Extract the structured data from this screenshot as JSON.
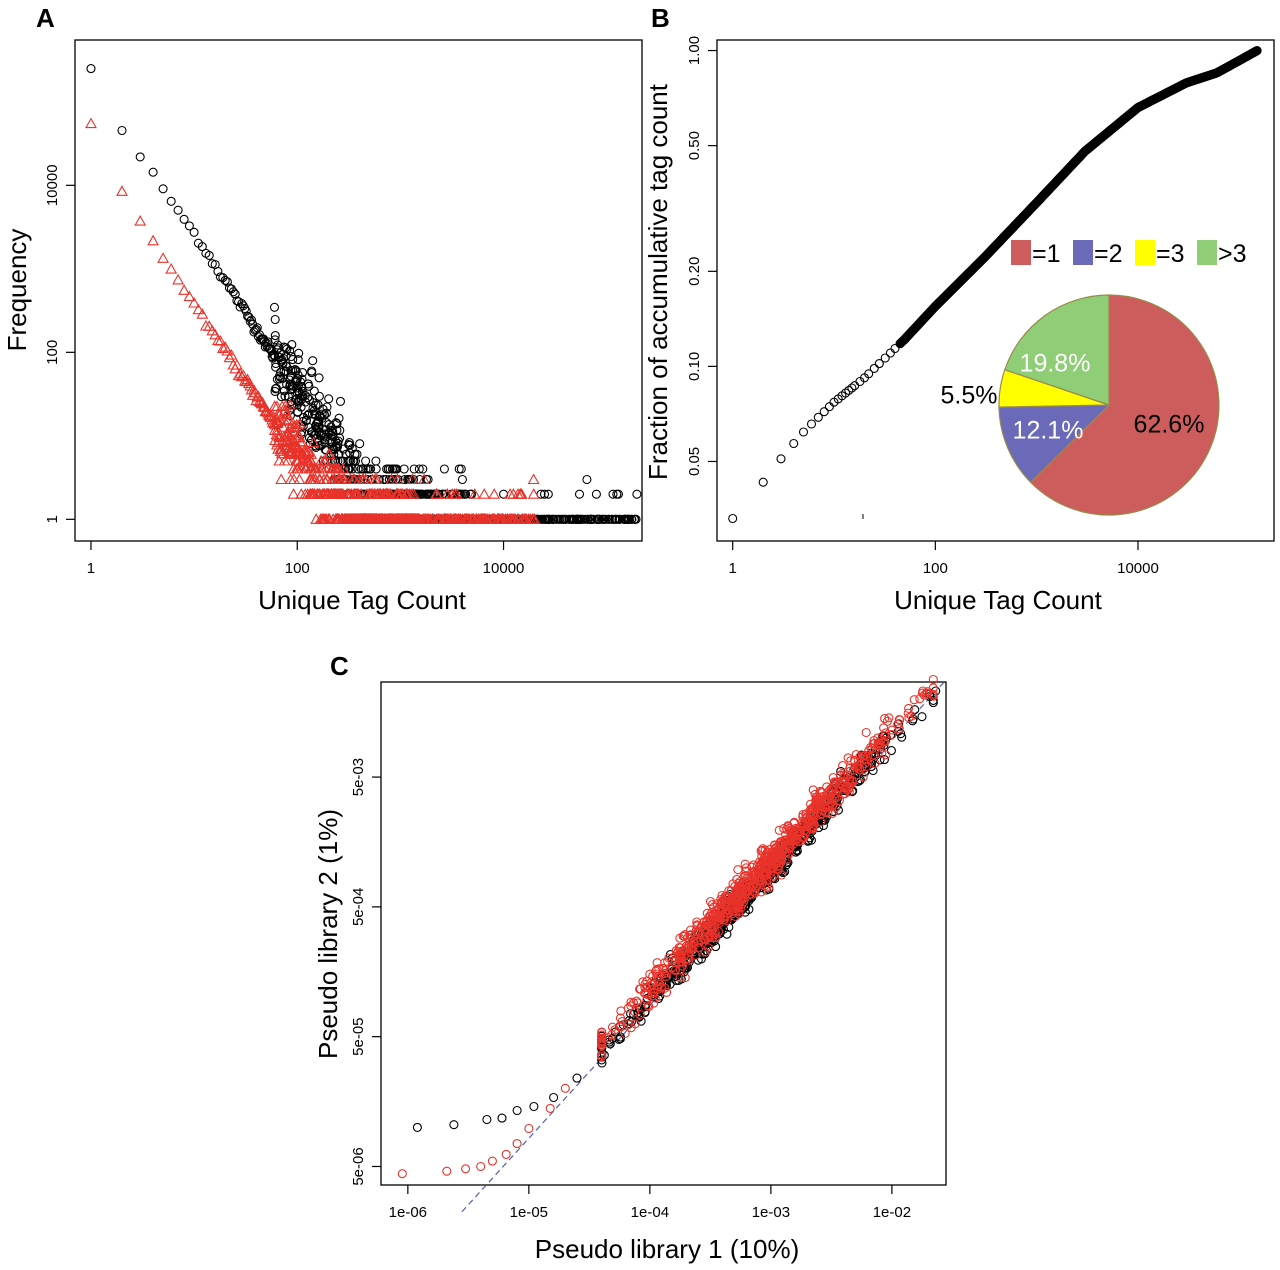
{
  "colors": {
    "black": "#000000",
    "red": "#e8332a",
    "blue_line": "#4f5fb5",
    "pie_eq1": "#cd5c5c",
    "pie_eq2": "#6a6ab9",
    "pie_eq3": "#ffff00",
    "pie_gt3": "#8fcd76",
    "pie_edge": "#9a8a4a"
  },
  "chart_data": [
    {
      "panel": "A",
      "type": "scatter",
      "title": "",
      "xlabel": "Unique Tag Count",
      "ylabel": "Frequency",
      "xscale": "log",
      "yscale": "log",
      "xlim": [
        0.7,
        220000
      ],
      "ylim": [
        0.55,
        550000
      ],
      "xticks": [
        1,
        100,
        10000
      ],
      "xtick_labels": [
        "1",
        "100",
        "10000"
      ],
      "yticks": [
        1,
        100,
        10000
      ],
      "ytick_labels": [
        "1",
        "100",
        "10000"
      ],
      "grid": false,
      "legend": "none",
      "series": [
        {
          "marker": "circle",
          "color": "#000000",
          "points": [
            [
              1,
              250000
            ],
            [
              2,
              45000
            ],
            [
              3,
              22000
            ],
            [
              4,
              14000
            ],
            [
              5,
              9000
            ],
            [
              6,
              6500
            ],
            [
              7,
              5000
            ],
            [
              8,
              3900
            ],
            [
              10,
              2700
            ],
            [
              12,
              1900
            ],
            [
              15,
              1250
            ],
            [
              20,
              720
            ],
            [
              30,
              330
            ],
            [
              50,
              125
            ],
            [
              70,
              65
            ],
            [
              100,
              32
            ],
            [
              150,
              15
            ],
            [
              200,
              9
            ],
            [
              300,
              4
            ],
            [
              500,
              2
            ],
            [
              1000,
              2
            ],
            [
              2000,
              1
            ],
            [
              5000,
              1
            ],
            [
              20000,
              1
            ],
            [
              100000,
              1
            ]
          ],
          "x_range": [
            1,
            200000
          ]
        },
        {
          "marker": "triangle",
          "color": "#e8332a",
          "points": [
            [
              1,
              55000
            ],
            [
              2,
              8500
            ],
            [
              3,
              3700
            ],
            [
              4,
              2100
            ],
            [
              5,
              1350
            ],
            [
              6,
              950
            ],
            [
              8,
              560
            ],
            [
              10,
              380
            ],
            [
              15,
              180
            ],
            [
              20,
              105
            ],
            [
              30,
              50
            ],
            [
              50,
              20
            ],
            [
              70,
              11
            ],
            [
              100,
              6
            ],
            [
              150,
              3
            ],
            [
              200,
              2
            ],
            [
              400,
              1
            ],
            [
              1000,
              1
            ],
            [
              5000,
              1
            ],
            [
              20000,
              1
            ]
          ],
          "x_range": [
            1,
            20000
          ]
        }
      ]
    },
    {
      "panel": "B",
      "type": "scatter",
      "title": "",
      "xlabel": "Unique Tag Count",
      "ylabel": "Fraction of accumulative tag count",
      "xscale": "log",
      "yscale": "log",
      "xlim": [
        0.7,
        220000
      ],
      "ylim": [
        0.028,
        1.08
      ],
      "xticks": [
        1,
        100,
        10000
      ],
      "xtick_labels": [
        "1",
        "100",
        "10000"
      ],
      "yticks": [
        0.05,
        0.1,
        0.2,
        0.5,
        1.0
      ],
      "ytick_labels": [
        "0.05",
        "0.10",
        "0.20",
        "0.50",
        "1.00"
      ],
      "grid": false,
      "legend": "none",
      "series": [
        {
          "marker": "circle",
          "color": "#000000",
          "points": [
            [
              1,
              0.033
            ],
            [
              2,
              0.043
            ],
            [
              3,
              0.051
            ],
            [
              4,
              0.057
            ],
            [
              5,
              0.062
            ],
            [
              7,
              0.069
            ],
            [
              10,
              0.077
            ],
            [
              20,
              0.092
            ],
            [
              50,
              0.122
            ],
            [
              100,
              0.155
            ],
            [
              300,
              0.22
            ],
            [
              1000,
              0.33
            ],
            [
              3000,
              0.48
            ],
            [
              10000,
              0.66
            ],
            [
              30000,
              0.79
            ],
            [
              60000,
              0.85
            ],
            [
              100000,
              0.93
            ],
            [
              150000,
              1.0
            ]
          ]
        }
      ]
    },
    {
      "panel": "B-inset",
      "type": "pie",
      "labels": [
        "=1",
        "=2",
        "=3",
        ">3"
      ],
      "values": [
        62.6,
        12.1,
        5.5,
        19.8
      ],
      "value_labels": [
        "62.6%",
        "12.1%",
        "5.5%",
        "19.8%"
      ],
      "colors": [
        "#cd5c5c",
        "#6a6ab9",
        "#ffff00",
        "#8fcd76"
      ],
      "legend": "top"
    },
    {
      "panel": "C",
      "type": "scatter",
      "title": "",
      "xlabel": "Pseudo library 1 (10%)",
      "ylabel": "Pseudo library 2 (1%)",
      "xscale": "log",
      "yscale": "log",
      "xlim": [
        6e-07,
        0.028
      ],
      "ylim": [
        3.6e-06,
        0.027
      ],
      "xticks": [
        1e-06,
        1e-05,
        0.0001,
        0.001,
        0.01
      ],
      "xtick_labels": [
        "1e-06",
        "1e-05",
        "1e-04",
        "1e-03",
        "1e-02"
      ],
      "yticks": [
        5e-06,
        5e-05,
        0.0005,
        0.005
      ],
      "ytick_labels": [
        "5e-06",
        "5e-05",
        "5e-04",
        "5e-03"
      ],
      "grid": false,
      "legend": "none",
      "reference_line": "y = x (dashed)",
      "series": [
        {
          "marker": "circle",
          "color": "#000000",
          "points": [
            [
              1.2e-06,
              1e-05
            ],
            [
              2.4e-06,
              1.05e-05
            ],
            [
              4.5e-06,
              1.15e-05
            ],
            [
              6e-06,
              1.18e-05
            ],
            [
              8e-06,
              1.35e-05
            ],
            [
              1.1e-05,
              1.45e-05
            ],
            [
              1.6e-05,
              1.7e-05
            ],
            [
              2.5e-05,
              2.4e-05
            ],
            [
              5e-05,
              5e-05
            ],
            [
              0.0001,
              0.0001
            ],
            [
              0.0003,
              0.00029
            ],
            [
              0.001,
              0.00096
            ],
            [
              0.003,
              0.003
            ],
            [
              0.008,
              0.0082
            ],
            [
              0.015,
              0.014
            ],
            [
              0.023,
              0.023
            ]
          ]
        },
        {
          "marker": "circle",
          "color": "#e8332a",
          "points": [
            [
              9e-07,
              4.4e-06
            ],
            [
              2.1e-06,
              4.6e-06
            ],
            [
              3e-06,
              4.8e-06
            ],
            [
              4e-06,
              5e-06
            ],
            [
              5e-06,
              5.5e-06
            ],
            [
              6.5e-06,
              6.2e-06
            ],
            [
              8e-06,
              7.5e-06
            ],
            [
              1e-05,
              9.8e-06
            ],
            [
              1.5e-05,
              1.4e-05
            ],
            [
              2e-05,
              2e-05
            ],
            [
              5e-05,
              5.4e-05
            ],
            [
              0.0001,
              0.000115
            ],
            [
              0.0003,
              0.00036
            ],
            [
              0.001,
              0.0011
            ],
            [
              0.003,
              0.0035
            ],
            [
              0.01,
              0.0115
            ],
            [
              0.018,
              0.023
            ]
          ]
        }
      ]
    }
  ],
  "panel_labels": [
    "A",
    "B",
    "C"
  ]
}
